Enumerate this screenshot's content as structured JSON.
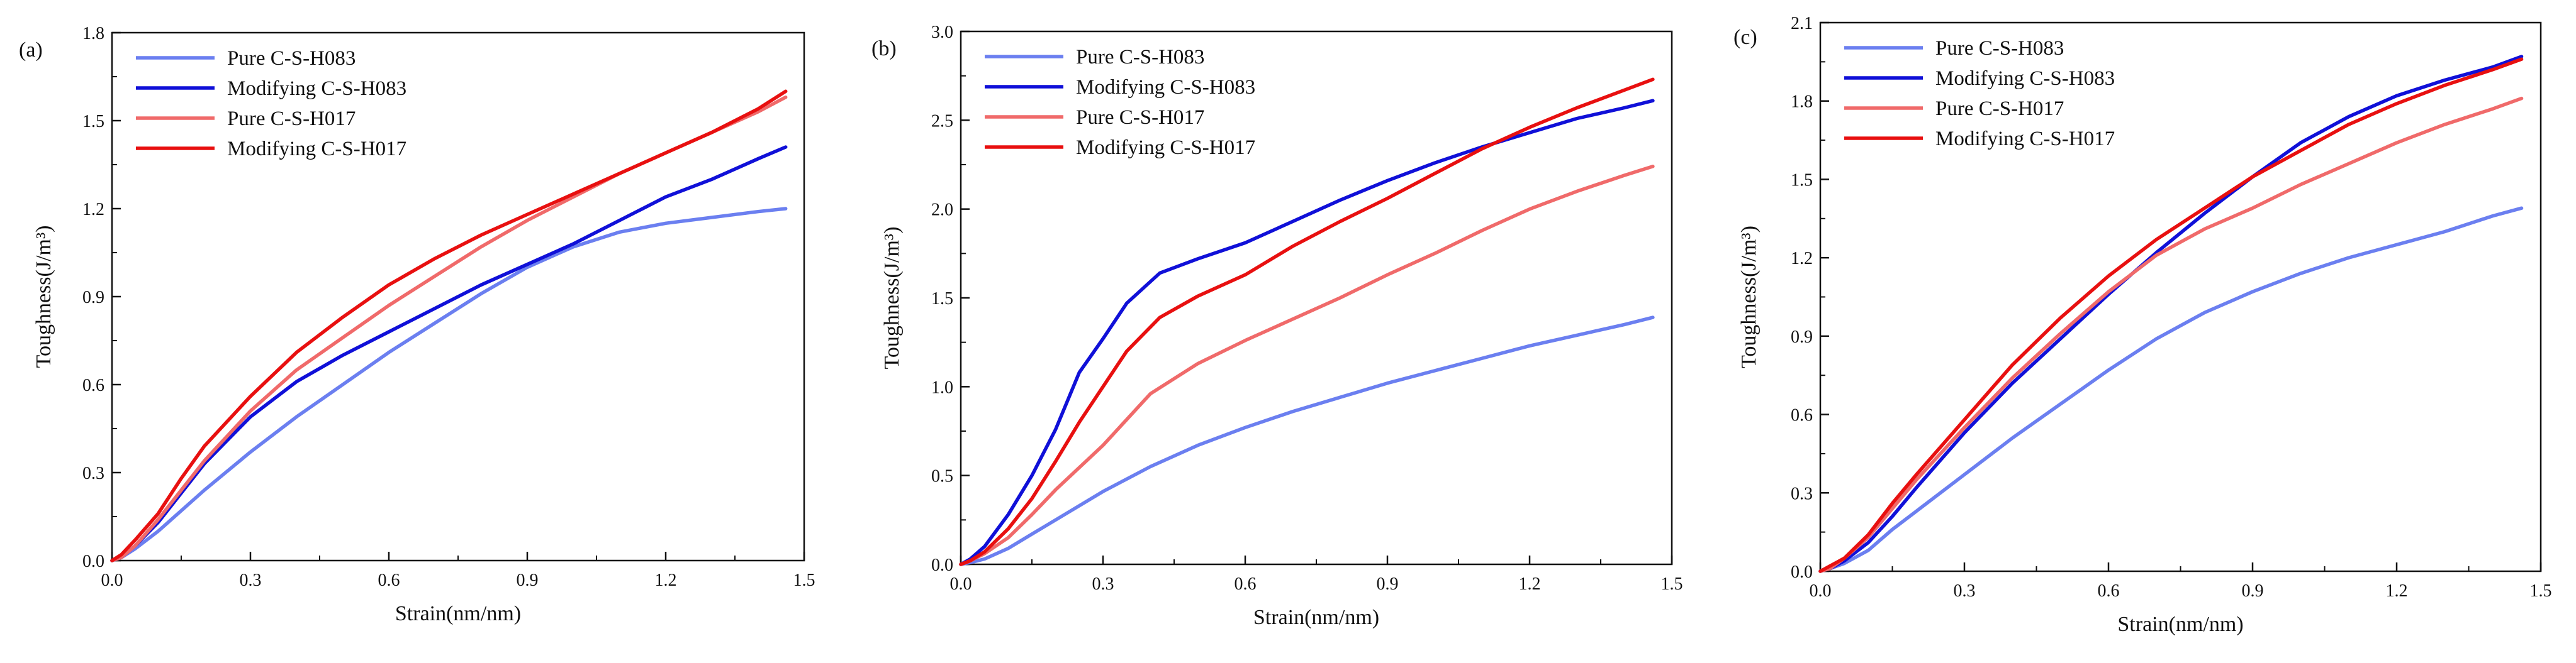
{
  "chart_data": [
    {
      "panel_label": "(a)",
      "type": "line",
      "xlabel": "Strain(nm/nm)",
      "ylabel": "Toughness(J/m³)",
      "xlim": [
        0,
        1.5
      ],
      "ylim": [
        0,
        1.8
      ],
      "xticks": [
        "0.0",
        "0.3",
        "0.6",
        "0.9",
        "1.2",
        "1.5"
      ],
      "yticks": [
        "0.0",
        "0.3",
        "0.6",
        "0.9",
        "1.2",
        "1.5",
        "1.8"
      ],
      "legend_position": "top-left",
      "series": [
        {
          "name": "Pure C-S-H083",
          "color": "#6b7ff0",
          "x": [
            0,
            0.02,
            0.05,
            0.1,
            0.15,
            0.2,
            0.3,
            0.4,
            0.5,
            0.6,
            0.7,
            0.8,
            0.9,
            1.0,
            1.1,
            1.2,
            1.3,
            1.4,
            1.46
          ],
          "y": [
            0,
            0.01,
            0.04,
            0.1,
            0.17,
            0.24,
            0.37,
            0.49,
            0.6,
            0.71,
            0.81,
            0.91,
            1.0,
            1.07,
            1.12,
            1.15,
            1.17,
            1.19,
            1.2
          ]
        },
        {
          "name": "Modifying C-S-H083",
          "color": "#1010d8",
          "x": [
            0,
            0.02,
            0.05,
            0.1,
            0.15,
            0.2,
            0.3,
            0.4,
            0.5,
            0.6,
            0.7,
            0.8,
            0.9,
            1.0,
            1.1,
            1.2,
            1.3,
            1.4,
            1.46
          ],
          "y": [
            0,
            0.01,
            0.05,
            0.13,
            0.23,
            0.33,
            0.49,
            0.61,
            0.7,
            0.78,
            0.86,
            0.94,
            1.01,
            1.08,
            1.16,
            1.24,
            1.3,
            1.37,
            1.41
          ]
        },
        {
          "name": "Pure C-S-H017",
          "color": "#f06a6a",
          "x": [
            0,
            0.02,
            0.05,
            0.1,
            0.15,
            0.2,
            0.3,
            0.4,
            0.5,
            0.6,
            0.7,
            0.8,
            0.9,
            1.0,
            1.1,
            1.2,
            1.3,
            1.4,
            1.46
          ],
          "y": [
            0,
            0.01,
            0.05,
            0.14,
            0.24,
            0.34,
            0.51,
            0.65,
            0.76,
            0.87,
            0.97,
            1.07,
            1.16,
            1.24,
            1.32,
            1.39,
            1.46,
            1.53,
            1.58
          ]
        },
        {
          "name": "Modifying C-S-H017",
          "color": "#e81010",
          "x": [
            0,
            0.02,
            0.05,
            0.1,
            0.15,
            0.2,
            0.3,
            0.4,
            0.5,
            0.6,
            0.7,
            0.8,
            0.9,
            1.0,
            1.1,
            1.2,
            1.3,
            1.4,
            1.46
          ],
          "y": [
            0,
            0.02,
            0.07,
            0.16,
            0.28,
            0.39,
            0.56,
            0.71,
            0.83,
            0.94,
            1.03,
            1.11,
            1.18,
            1.25,
            1.32,
            1.39,
            1.46,
            1.54,
            1.6
          ]
        }
      ]
    },
    {
      "panel_label": "(b)",
      "type": "line",
      "xlabel": "Strain(nm/nm)",
      "ylabel": "Toughness(J/m³)",
      "xlim": [
        0,
        1.5
      ],
      "ylim": [
        0,
        3.0
      ],
      "xticks": [
        "0.0",
        "0.3",
        "0.6",
        "0.9",
        "1.2",
        "1.5"
      ],
      "yticks": [
        "0.0",
        "0.5",
        "1.0",
        "1.5",
        "2.0",
        "2.5",
        "3.0"
      ],
      "legend_position": "top-left",
      "series": [
        {
          "name": "Pure C-S-H083",
          "color": "#6b7ff0",
          "x": [
            0,
            0.02,
            0.05,
            0.1,
            0.15,
            0.2,
            0.3,
            0.4,
            0.5,
            0.6,
            0.7,
            0.8,
            0.9,
            1.0,
            1.1,
            1.2,
            1.3,
            1.4,
            1.46
          ],
          "y": [
            0,
            0.01,
            0.03,
            0.09,
            0.17,
            0.25,
            0.41,
            0.55,
            0.67,
            0.77,
            0.86,
            0.94,
            1.02,
            1.09,
            1.16,
            1.23,
            1.29,
            1.35,
            1.39
          ]
        },
        {
          "name": "Modifying C-S-H083",
          "color": "#1010d8",
          "x": [
            0,
            0.02,
            0.05,
            0.1,
            0.15,
            0.2,
            0.25,
            0.3,
            0.35,
            0.42,
            0.5,
            0.6,
            0.7,
            0.8,
            0.9,
            1.0,
            1.1,
            1.2,
            1.3,
            1.4,
            1.46
          ],
          "y": [
            0,
            0.03,
            0.1,
            0.28,
            0.5,
            0.76,
            1.08,
            1.27,
            1.47,
            1.64,
            1.72,
            1.81,
            1.93,
            2.05,
            2.16,
            2.26,
            2.35,
            2.43,
            2.51,
            2.57,
            2.61
          ]
        },
        {
          "name": "Pure C-S-H017",
          "color": "#f06a6a",
          "x": [
            0,
            0.02,
            0.05,
            0.1,
            0.15,
            0.2,
            0.3,
            0.4,
            0.5,
            0.6,
            0.7,
            0.8,
            0.9,
            1.0,
            1.1,
            1.2,
            1.3,
            1.4,
            1.46
          ],
          "y": [
            0,
            0.02,
            0.06,
            0.15,
            0.28,
            0.42,
            0.67,
            0.96,
            1.13,
            1.26,
            1.38,
            1.5,
            1.63,
            1.75,
            1.88,
            2.0,
            2.1,
            2.19,
            2.24
          ]
        },
        {
          "name": "Modifying C-S-H017",
          "color": "#e81010",
          "x": [
            0,
            0.02,
            0.05,
            0.1,
            0.15,
            0.2,
            0.25,
            0.3,
            0.35,
            0.42,
            0.5,
            0.6,
            0.7,
            0.8,
            0.9,
            1.0,
            1.1,
            1.2,
            1.3,
            1.4,
            1.46
          ],
          "y": [
            0,
            0.02,
            0.07,
            0.2,
            0.37,
            0.58,
            0.8,
            1.0,
            1.2,
            1.39,
            1.51,
            1.63,
            1.79,
            1.93,
            2.06,
            2.2,
            2.34,
            2.46,
            2.57,
            2.67,
            2.73
          ]
        }
      ]
    },
    {
      "panel_label": "(c)",
      "type": "line",
      "xlabel": "Strain(nm/nm)",
      "ylabel": "Toughness(J/m³)",
      "xlim": [
        0,
        1.5
      ],
      "ylim": [
        0,
        2.1
      ],
      "xticks": [
        "0.0",
        "0.3",
        "0.6",
        "0.9",
        "1.2",
        "1.5"
      ],
      "yticks": [
        "0.0",
        "0.3",
        "0.6",
        "0.9",
        "1.2",
        "1.5",
        "1.8",
        "2.1"
      ],
      "legend_position": "top-left",
      "series": [
        {
          "name": "Pure C-S-H083",
          "color": "#6b7ff0",
          "x": [
            0,
            0.02,
            0.05,
            0.1,
            0.15,
            0.2,
            0.3,
            0.4,
            0.5,
            0.6,
            0.7,
            0.8,
            0.9,
            1.0,
            1.1,
            1.2,
            1.3,
            1.4,
            1.46
          ],
          "y": [
            0,
            0.01,
            0.03,
            0.08,
            0.16,
            0.23,
            0.37,
            0.51,
            0.64,
            0.77,
            0.89,
            0.99,
            1.07,
            1.14,
            1.2,
            1.25,
            1.3,
            1.36,
            1.39
          ]
        },
        {
          "name": "Modifying C-S-H083",
          "color": "#1010d8",
          "x": [
            0,
            0.02,
            0.05,
            0.1,
            0.15,
            0.2,
            0.3,
            0.4,
            0.5,
            0.6,
            0.7,
            0.8,
            0.9,
            1.0,
            1.1,
            1.2,
            1.3,
            1.4,
            1.46
          ],
          "y": [
            0,
            0.01,
            0.04,
            0.11,
            0.21,
            0.32,
            0.53,
            0.72,
            0.89,
            1.06,
            1.22,
            1.37,
            1.51,
            1.64,
            1.74,
            1.82,
            1.88,
            1.93,
            1.97
          ]
        },
        {
          "name": "Pure C-S-H017",
          "color": "#f06a6a",
          "x": [
            0,
            0.02,
            0.05,
            0.1,
            0.15,
            0.2,
            0.3,
            0.4,
            0.5,
            0.6,
            0.7,
            0.8,
            0.9,
            1.0,
            1.1,
            1.2,
            1.3,
            1.4,
            1.46
          ],
          "y": [
            0,
            0.01,
            0.05,
            0.13,
            0.24,
            0.35,
            0.55,
            0.74,
            0.91,
            1.07,
            1.21,
            1.31,
            1.39,
            1.48,
            1.56,
            1.64,
            1.71,
            1.77,
            1.81
          ]
        },
        {
          "name": "Modifying C-S-H017",
          "color": "#e81010",
          "x": [
            0,
            0.02,
            0.05,
            0.1,
            0.15,
            0.2,
            0.3,
            0.4,
            0.5,
            0.6,
            0.7,
            0.8,
            0.9,
            1.0,
            1.1,
            1.2,
            1.3,
            1.4,
            1.46
          ],
          "y": [
            0,
            0.02,
            0.05,
            0.14,
            0.26,
            0.37,
            0.58,
            0.79,
            0.97,
            1.13,
            1.27,
            1.39,
            1.51,
            1.61,
            1.71,
            1.79,
            1.86,
            1.92,
            1.96
          ]
        }
      ]
    }
  ]
}
